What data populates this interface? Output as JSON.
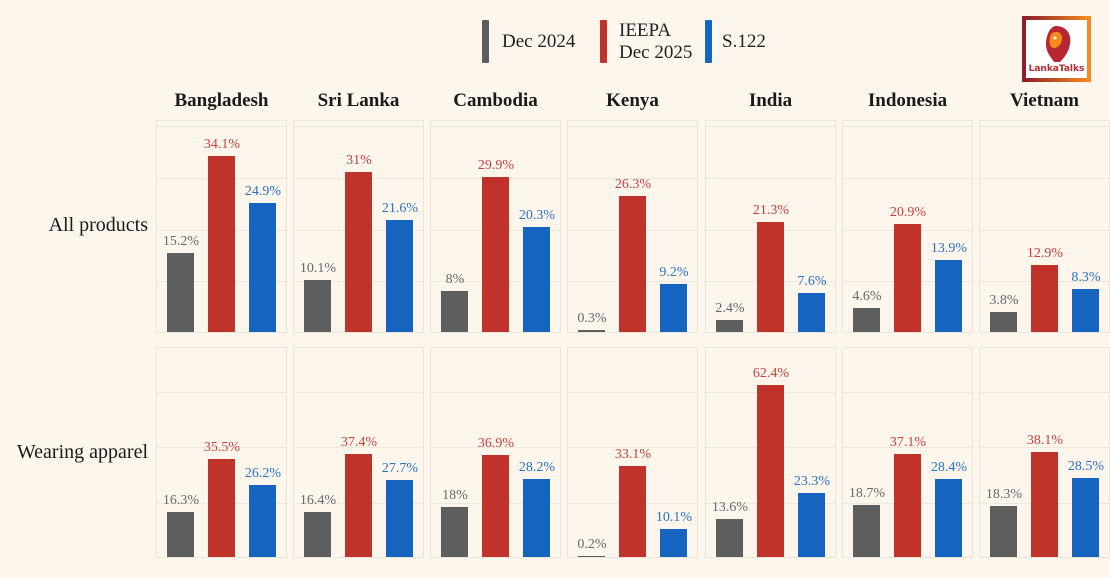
{
  "logo_text": "LankaTalks",
  "colors": {
    "dec2024": "#5e5e5e",
    "ieepa": "#c0332b",
    "s122": "#1565c0",
    "background": "#fdf6ec"
  },
  "legend": [
    {
      "label_lines": [
        "Dec 2024"
      ],
      "color": "#5e5e5e"
    },
    {
      "label_lines": [
        "IEEPA",
        "Dec 2025"
      ],
      "color": "#c0332b"
    },
    {
      "label_lines": [
        "S.122"
      ],
      "color": "#1565c0"
    }
  ],
  "chart_data": {
    "type": "bar",
    "layout": "faceted grid",
    "legend_position": "top",
    "grid": true,
    "columns": [
      "Bangladesh",
      "Sri Lanka",
      "Cambodia",
      "Kenya",
      "India",
      "Indonesia",
      "Vietnam"
    ],
    "rows": [
      {
        "label": "All products",
        "ylim": [
          0,
          41
        ],
        "series": [
          {
            "name": "Dec 2024",
            "values": [
              15.2,
              10.1,
              8,
              0.3,
              2.4,
              4.6,
              3.8
            ],
            "labels": [
              "15.2%",
              "10.1%",
              "8%",
              "0.3%",
              "2.4%",
              "4.6%",
              "3.8%"
            ]
          },
          {
            "name": "IEEPA Dec 2025",
            "values": [
              34.1,
              31,
              29.9,
              26.3,
              21.3,
              20.9,
              12.9
            ],
            "labels": [
              "34.1%",
              "31%",
              "29.9%",
              "26.3%",
              "21.3%",
              "20.9%",
              "12.9%"
            ]
          },
          {
            "name": "S.122",
            "values": [
              24.9,
              21.6,
              20.3,
              9.2,
              7.6,
              13.9,
              8.3
            ],
            "labels": [
              "24.9%",
              "21.6%",
              "20.3%",
              "9.2%",
              "7.6%",
              "13.9%",
              "8.3%"
            ]
          }
        ]
      },
      {
        "label": "Wearing apparel",
        "ylim": [
          0,
          76
        ],
        "series": [
          {
            "name": "Dec 2024",
            "values": [
              16.3,
              16.4,
              18,
              0.2,
              13.6,
              18.7,
              18.3
            ],
            "labels": [
              "16.3%",
              "16.4%",
              "18%",
              "0.2%",
              "13.6%",
              "18.7%",
              "18.3%"
            ]
          },
          {
            "name": "IEEPA Dec 2025",
            "values": [
              35.5,
              37.4,
              36.9,
              33.1,
              62.4,
              37.1,
              38.1
            ],
            "labels": [
              "35.5%",
              "37.4%",
              "36.9%",
              "33.1%",
              "62.4%",
              "37.1%",
              "38.1%"
            ]
          },
          {
            "name": "S.122",
            "values": [
              26.2,
              27.7,
              28.2,
              10.1,
              23.3,
              28.4,
              28.5
            ],
            "labels": [
              "26.2%",
              "27.7%",
              "28.2%",
              "10.1%",
              "23.3%",
              "28.4%",
              "28.5%"
            ]
          }
        ]
      }
    ]
  }
}
